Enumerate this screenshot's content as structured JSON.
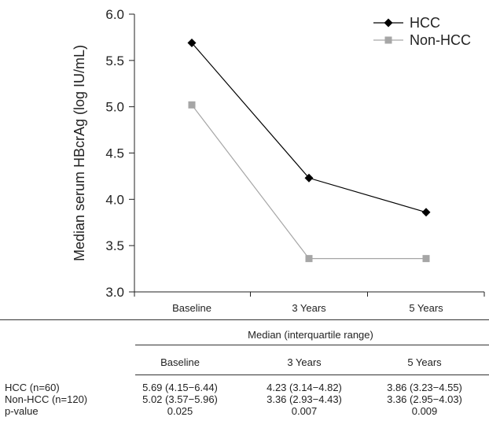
{
  "chart_data": {
    "type": "line",
    "categories": [
      "Baseline",
      "3 Years",
      "5 Years"
    ],
    "ylabel": "Median serum HBcrAg (log IU/mL)",
    "ylim": [
      3.0,
      6.0
    ],
    "yticks": [
      "3.0",
      "3.5",
      "4.0",
      "4.5",
      "5.0",
      "5.5",
      "6.0"
    ],
    "legend_position": "top-right",
    "grid": false,
    "series": [
      {
        "name": "HCC",
        "values": [
          5.69,
          4.23,
          3.86
        ],
        "color": "#000000",
        "marker": "diamond"
      },
      {
        "name": "Non-HCC",
        "values": [
          5.02,
          3.36,
          3.36
        ],
        "color": "#a6a6a6",
        "marker": "square"
      }
    ]
  },
  "table": {
    "group_header": "Median (interquartile range)",
    "columns": [
      "Baseline",
      "3 Years",
      "5 Years"
    ],
    "rows": [
      {
        "label": "HCC (n=60)",
        "values": [
          "5.69 (4.15−6.44)",
          "4.23 (3.14−4.82)",
          "3.86 (3.23−4.55)"
        ]
      },
      {
        "label": "Non-HCC (n=120)",
        "values": [
          "5.02 (3.57−5.96)",
          "3.36 (2.93−4.43)",
          "3.36 (2.95−4.03)"
        ]
      },
      {
        "label": "p-value",
        "values": [
          "0.025",
          "0.007",
          "0.009"
        ]
      }
    ]
  }
}
